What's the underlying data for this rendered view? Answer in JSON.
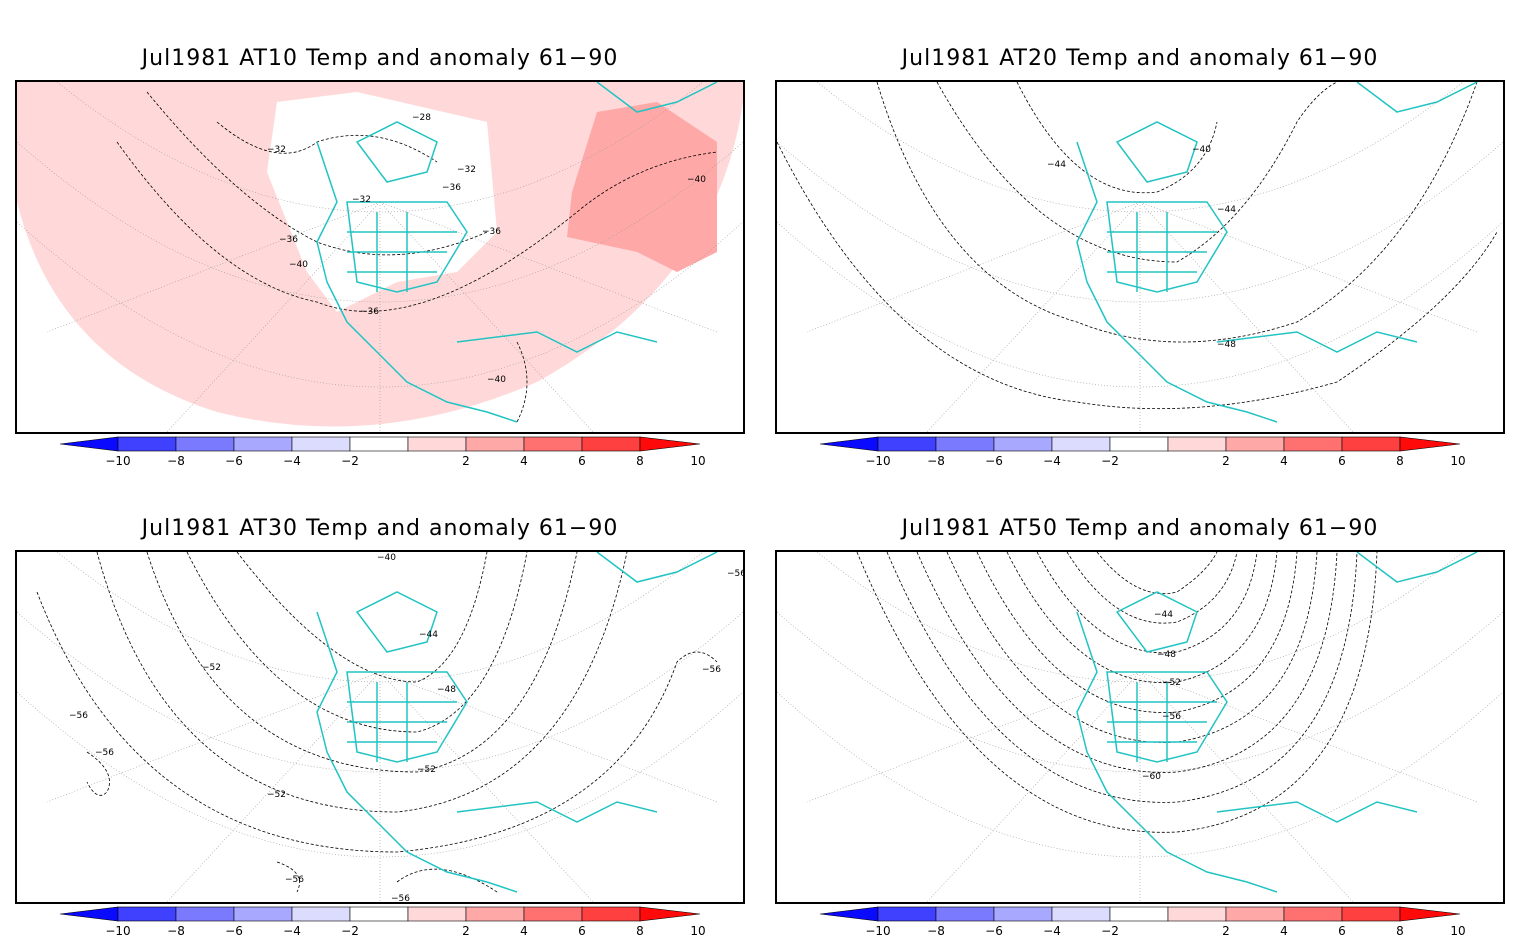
{
  "colorbar": {
    "labels": [
      "−10",
      "−8",
      "−6",
      "−4",
      "−2",
      "2",
      "4",
      "6",
      "8",
      "10"
    ],
    "colors": [
      "#0a0aff",
      "#4040ff",
      "#7a7aff",
      "#a8a8ff",
      "#dcdcff",
      "#ffffff",
      "#ffd9d9",
      "#ffa8a8",
      "#ff7070",
      "#ff4040",
      "#ff0a0a"
    ]
  },
  "land_color": "#22c3c3",
  "panels": [
    {
      "title": "Jul1981 AT10 Temp and anomaly 61−90",
      "anomaly_fill": "#ffd9d9",
      "strong_fill": "#ffa8a8",
      "contour_labels": [
        "−32",
        "−36",
        "−32",
        "−36",
        "−32",
        "−28",
        "−36",
        "−40",
        "−36",
        "−40",
        "−40"
      ]
    },
    {
      "title": "Jul1981 AT20 Temp and anomaly 61−90",
      "anomaly_fill": "#ffffff",
      "contour_labels": [
        "−44",
        "−40",
        "−44",
        "−48"
      ]
    },
    {
      "title": "Jul1981 AT30 Temp and anomaly 61−90",
      "anomaly_fill": "#ffffff",
      "contour_labels": [
        "−40",
        "−44",
        "−48",
        "−52",
        "−56",
        "−56",
        "−56",
        "−52",
        "−52",
        "−56",
        "−56",
        "−56"
      ]
    },
    {
      "title": "Jul1981 AT50 Temp and anomaly 61−90",
      "anomaly_fill": "#ffffff",
      "contour_labels": [
        "−44",
        "−48",
        "−52",
        "−56",
        "−60"
      ]
    }
  ]
}
